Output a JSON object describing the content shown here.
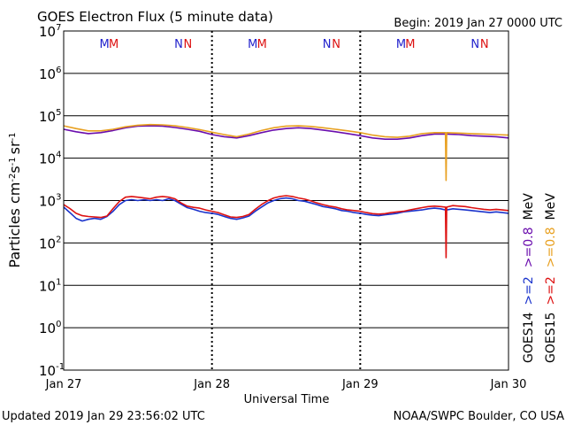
{
  "chart_data": {
    "type": "line",
    "title": "GOES Electron Flux (5 minute data)",
    "begin_label": "Begin: 2019 Jan 27 0000 UTC",
    "xlabel": "Universal Time",
    "ylabel_parts": {
      "base": "Particles cm",
      "sup1": "-2",
      "s": "s",
      "sup2": "-1",
      "sr": "sr",
      "sup3": "-1"
    },
    "yscale": "log",
    "ylim": [
      0.1,
      10000000
    ],
    "xlim_hours": [
      0,
      72
    ],
    "y_ticks": [
      {
        "base": "10",
        "exp": "7",
        "value": 10000000
      },
      {
        "base": "10",
        "exp": "6",
        "value": 1000000
      },
      {
        "base": "10",
        "exp": "5",
        "value": 100000
      },
      {
        "base": "10",
        "exp": "4",
        "value": 10000
      },
      {
        "base": "10",
        "exp": "3",
        "value": 1000
      },
      {
        "base": "10",
        "exp": "2",
        "value": 100
      },
      {
        "base": "10",
        "exp": "1",
        "value": 10
      },
      {
        "base": "10",
        "exp": "0",
        "value": 1
      },
      {
        "base": "10",
        "exp": "-1",
        "value": 0.1
      }
    ],
    "x_ticks": [
      {
        "label": "Jan 27",
        "hour": 0
      },
      {
        "label": "Jan 28",
        "hour": 24
      },
      {
        "label": "Jan 29",
        "hour": 48
      },
      {
        "label": "Jan 30",
        "hour": 72
      }
    ],
    "alert_threshold": 1000,
    "markers": [
      {
        "label": "M",
        "hour": 6.6,
        "color": "#2222cc"
      },
      {
        "label": "M",
        "hour": 8.1,
        "color": "#dd1111"
      },
      {
        "label": "N",
        "hour": 18.6,
        "color": "#2222cc"
      },
      {
        "label": "N",
        "hour": 20.1,
        "color": "#dd1111"
      },
      {
        "label": "M",
        "hour": 30.6,
        "color": "#2222cc"
      },
      {
        "label": "M",
        "hour": 32.1,
        "color": "#dd1111"
      },
      {
        "label": "N",
        "hour": 42.6,
        "color": "#2222cc"
      },
      {
        "label": "N",
        "hour": 44.1,
        "color": "#dd1111"
      },
      {
        "label": "M",
        "hour": 54.6,
        "color": "#2222cc"
      },
      {
        "label": "M",
        "hour": 56.1,
        "color": "#dd1111"
      },
      {
        "label": "N",
        "hour": 66.6,
        "color": "#2222cc"
      },
      {
        "label": "N",
        "hour": 68.1,
        "color": "#dd1111"
      }
    ],
    "series": [
      {
        "name": "GOES14 >=0.8 MeV",
        "color": "#6a0dad",
        "points": [
          [
            0,
            48000
          ],
          [
            2,
            42000
          ],
          [
            4,
            38000
          ],
          [
            6,
            40000
          ],
          [
            8,
            45000
          ],
          [
            10,
            52000
          ],
          [
            12,
            57000
          ],
          [
            14,
            58000
          ],
          [
            16,
            57000
          ],
          [
            18,
            53000
          ],
          [
            20,
            48000
          ],
          [
            22,
            43000
          ],
          [
            24,
            36000
          ],
          [
            26,
            32000
          ],
          [
            28,
            30000
          ],
          [
            30,
            34000
          ],
          [
            32,
            40000
          ],
          [
            34,
            46000
          ],
          [
            36,
            50000
          ],
          [
            38,
            52000
          ],
          [
            40,
            50000
          ],
          [
            42,
            46000
          ],
          [
            44,
            42000
          ],
          [
            46,
            38000
          ],
          [
            48,
            34000
          ],
          [
            50,
            30000
          ],
          [
            52,
            28000
          ],
          [
            54,
            28000
          ],
          [
            56,
            30000
          ],
          [
            58,
            34000
          ],
          [
            60,
            37000
          ],
          [
            62,
            37000
          ],
          [
            64,
            36000
          ],
          [
            66,
            34000
          ],
          [
            68,
            33000
          ],
          [
            70,
            32000
          ],
          [
            72,
            30000
          ]
        ]
      },
      {
        "name": "GOES15 >=0.8 MeV",
        "color": "#e8a020",
        "points": [
          [
            0,
            58000
          ],
          [
            2,
            50000
          ],
          [
            4,
            44000
          ],
          [
            6,
            44000
          ],
          [
            8,
            48000
          ],
          [
            10,
            55000
          ],
          [
            12,
            60000
          ],
          [
            14,
            62000
          ],
          [
            16,
            61000
          ],
          [
            18,
            58000
          ],
          [
            20,
            53000
          ],
          [
            22,
            47000
          ],
          [
            24,
            41000
          ],
          [
            26,
            36000
          ],
          [
            28,
            32000
          ],
          [
            30,
            37000
          ],
          [
            32,
            45000
          ],
          [
            34,
            52000
          ],
          [
            36,
            57000
          ],
          [
            38,
            58000
          ],
          [
            40,
            56000
          ],
          [
            42,
            52000
          ],
          [
            44,
            48000
          ],
          [
            46,
            44000
          ],
          [
            48,
            40000
          ],
          [
            50,
            35000
          ],
          [
            52,
            32000
          ],
          [
            54,
            31000
          ],
          [
            56,
            33000
          ],
          [
            58,
            38000
          ],
          [
            60,
            40000
          ],
          [
            61.8,
            40000
          ],
          [
            61.9,
            3000
          ],
          [
            62.0,
            40000
          ],
          [
            64,
            39000
          ],
          [
            66,
            38000
          ],
          [
            68,
            37000
          ],
          [
            70,
            36000
          ],
          [
            72,
            35000
          ]
        ]
      },
      {
        "name": "GOES14 >=2 MeV",
        "color": "#1a33cc",
        "points": [
          [
            0,
            700
          ],
          [
            1,
            520
          ],
          [
            2,
            380
          ],
          [
            3,
            330
          ],
          [
            4,
            360
          ],
          [
            5,
            380
          ],
          [
            6,
            360
          ],
          [
            7,
            420
          ],
          [
            8,
            560
          ],
          [
            9,
            800
          ],
          [
            10,
            1000
          ],
          [
            11,
            1050
          ],
          [
            12,
            1000
          ],
          [
            13,
            1050
          ],
          [
            14,
            1000
          ],
          [
            15,
            1050
          ],
          [
            16,
            1000
          ],
          [
            17,
            1100
          ],
          [
            18,
            1000
          ],
          [
            19,
            820
          ],
          [
            20,
            680
          ],
          [
            21,
            620
          ],
          [
            22,
            560
          ],
          [
            23,
            520
          ],
          [
            24,
            500
          ],
          [
            25,
            470
          ],
          [
            26,
            420
          ],
          [
            27,
            380
          ],
          [
            28,
            360
          ],
          [
            29,
            390
          ],
          [
            30,
            430
          ],
          [
            31,
            560
          ],
          [
            32,
            700
          ],
          [
            33,
            870
          ],
          [
            34,
            1000
          ],
          [
            35,
            1100
          ],
          [
            36,
            1150
          ],
          [
            37,
            1100
          ],
          [
            38,
            1000
          ],
          [
            39,
            960
          ],
          [
            40,
            880
          ],
          [
            41,
            800
          ],
          [
            42,
            720
          ],
          [
            43,
            680
          ],
          [
            44,
            640
          ],
          [
            45,
            580
          ],
          [
            46,
            560
          ],
          [
            47,
            520
          ],
          [
            48,
            500
          ],
          [
            49,
            470
          ],
          [
            50,
            450
          ],
          [
            51,
            440
          ],
          [
            52,
            460
          ],
          [
            53,
            480
          ],
          [
            54,
            500
          ],
          [
            55,
            540
          ],
          [
            56,
            560
          ],
          [
            57,
            580
          ],
          [
            58,
            600
          ],
          [
            59,
            640
          ],
          [
            60,
            660
          ],
          [
            61,
            640
          ],
          [
            61.8,
            600
          ],
          [
            62,
            600
          ],
          [
            63,
            640
          ],
          [
            64,
            620
          ],
          [
            65,
            600
          ],
          [
            66,
            580
          ],
          [
            67,
            560
          ],
          [
            68,
            540
          ],
          [
            69,
            520
          ],
          [
            70,
            540
          ],
          [
            71,
            520
          ],
          [
            72,
            500
          ]
        ]
      },
      {
        "name": "GOES15 >=2 MeV",
        "color": "#dd1111",
        "points": [
          [
            0,
            800
          ],
          [
            1,
            650
          ],
          [
            2,
            500
          ],
          [
            3,
            440
          ],
          [
            4,
            420
          ],
          [
            5,
            410
          ],
          [
            6,
            400
          ],
          [
            7,
            430
          ],
          [
            8,
            650
          ],
          [
            9,
            950
          ],
          [
            10,
            1200
          ],
          [
            11,
            1250
          ],
          [
            12,
            1200
          ],
          [
            13,
            1150
          ],
          [
            14,
            1100
          ],
          [
            15,
            1200
          ],
          [
            16,
            1250
          ],
          [
            17,
            1200
          ],
          [
            18,
            1100
          ],
          [
            19,
            880
          ],
          [
            20,
            740
          ],
          [
            21,
            690
          ],
          [
            22,
            660
          ],
          [
            23,
            600
          ],
          [
            24,
            560
          ],
          [
            25,
            520
          ],
          [
            26,
            460
          ],
          [
            27,
            410
          ],
          [
            28,
            400
          ],
          [
            29,
            420
          ],
          [
            30,
            470
          ],
          [
            31,
            620
          ],
          [
            32,
            800
          ],
          [
            33,
            980
          ],
          [
            34,
            1150
          ],
          [
            35,
            1250
          ],
          [
            36,
            1300
          ],
          [
            37,
            1250
          ],
          [
            38,
            1150
          ],
          [
            39,
            1080
          ],
          [
            40,
            980
          ],
          [
            41,
            880
          ],
          [
            42,
            800
          ],
          [
            43,
            740
          ],
          [
            44,
            700
          ],
          [
            45,
            640
          ],
          [
            46,
            600
          ],
          [
            47,
            580
          ],
          [
            48,
            560
          ],
          [
            49,
            520
          ],
          [
            50,
            490
          ],
          [
            51,
            480
          ],
          [
            52,
            490
          ],
          [
            53,
            520
          ],
          [
            54,
            540
          ],
          [
            55,
            560
          ],
          [
            56,
            600
          ],
          [
            57,
            640
          ],
          [
            58,
            680
          ],
          [
            59,
            720
          ],
          [
            60,
            740
          ],
          [
            61,
            720
          ],
          [
            61.8,
            700
          ],
          [
            61.9,
            45
          ],
          [
            62,
            700
          ],
          [
            63,
            760
          ],
          [
            64,
            740
          ],
          [
            65,
            720
          ],
          [
            66,
            680
          ],
          [
            67,
            650
          ],
          [
            68,
            620
          ],
          [
            69,
            600
          ],
          [
            70,
            620
          ],
          [
            71,
            600
          ],
          [
            72,
            580
          ]
        ]
      }
    ],
    "right_legend": [
      {
        "label": "GOES14",
        "color": "#000000"
      },
      {
        "label": ">=2",
        "color": "#1a33cc"
      },
      {
        "label": ">=0.8",
        "color": "#6a0dad"
      },
      {
        "label": "MeV",
        "color": "#000000"
      },
      {
        "label": "GOES15",
        "color": "#000000"
      },
      {
        "label": ">=2",
        "color": "#dd1111"
      },
      {
        "label": ">=0.8",
        "color": "#e8a020"
      },
      {
        "label": "MeV",
        "color": "#000000"
      }
    ],
    "footer_left": "Updated 2019 Jan 29 23:56:02 UTC",
    "footer_right": "NOAA/SWPC Boulder, CO USA"
  }
}
